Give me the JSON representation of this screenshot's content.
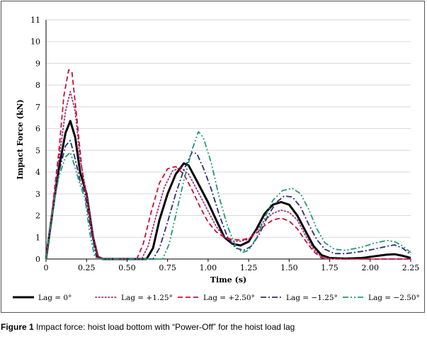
{
  "chart_data": {
    "type": "line",
    "xlabel": "Time (s)",
    "ylabel": "Impact Force (kN)",
    "xlim": [
      0,
      2.25
    ],
    "ylim": [
      0,
      11
    ],
    "xticks": [
      "0",
      "0.25",
      "0.50",
      "0.75",
      "1.00",
      "1.25",
      "1.50",
      "1.75",
      "2.00",
      "2.25"
    ],
    "yticks": [
      "0",
      "1",
      "2",
      "3",
      "4",
      "5",
      "6",
      "7",
      "8",
      "9",
      "10",
      "11"
    ],
    "grid": true,
    "legend_position": "bottom",
    "series": [
      {
        "name": "Lag = 0°",
        "color": "#000000",
        "dash": "solid",
        "points": [
          [
            0,
            0
          ],
          [
            0.04,
            2.2
          ],
          [
            0.08,
            4.2
          ],
          [
            0.12,
            5.8
          ],
          [
            0.15,
            6.35
          ],
          [
            0.18,
            5.6
          ],
          [
            0.21,
            4.0
          ],
          [
            0.25,
            3.0
          ],
          [
            0.29,
            1.0
          ],
          [
            0.32,
            0.1
          ],
          [
            0.35,
            0
          ],
          [
            0.62,
            0
          ],
          [
            0.66,
            0.5
          ],
          [
            0.7,
            1.8
          ],
          [
            0.75,
            3.0
          ],
          [
            0.8,
            3.9
          ],
          [
            0.85,
            4.4
          ],
          [
            0.88,
            4.3
          ],
          [
            0.93,
            3.6
          ],
          [
            1.0,
            2.6
          ],
          [
            1.05,
            1.8
          ],
          [
            1.1,
            1.0
          ],
          [
            1.15,
            0.7
          ],
          [
            1.2,
            0.62
          ],
          [
            1.25,
            0.8
          ],
          [
            1.3,
            1.4
          ],
          [
            1.35,
            2.1
          ],
          [
            1.4,
            2.5
          ],
          [
            1.45,
            2.62
          ],
          [
            1.5,
            2.5
          ],
          [
            1.55,
            2.0
          ],
          [
            1.6,
            1.3
          ],
          [
            1.65,
            0.6
          ],
          [
            1.7,
            0.18
          ],
          [
            1.75,
            0.05
          ],
          [
            1.85,
            0.02
          ],
          [
            1.95,
            0.05
          ],
          [
            2.02,
            0.12
          ],
          [
            2.1,
            0.2
          ],
          [
            2.15,
            0.22
          ],
          [
            2.2,
            0.15
          ],
          [
            2.25,
            0.05
          ]
        ]
      },
      {
        "name": "Lag = +1.25°",
        "color": "#a0307a",
        "dash": "dot",
        "points": [
          [
            0,
            0
          ],
          [
            0.04,
            2.3
          ],
          [
            0.08,
            4.6
          ],
          [
            0.12,
            6.8
          ],
          [
            0.15,
            7.7
          ],
          [
            0.18,
            6.8
          ],
          [
            0.21,
            4.6
          ],
          [
            0.25,
            3.0
          ],
          [
            0.29,
            1.0
          ],
          [
            0.32,
            0.1
          ],
          [
            0.35,
            0
          ],
          [
            0.59,
            0
          ],
          [
            0.63,
            0.6
          ],
          [
            0.68,
            2.0
          ],
          [
            0.73,
            3.3
          ],
          [
            0.78,
            4.05
          ],
          [
            0.83,
            4.2
          ],
          [
            0.88,
            3.9
          ],
          [
            0.93,
            3.2
          ],
          [
            1.0,
            2.2
          ],
          [
            1.05,
            1.5
          ],
          [
            1.1,
            1.0
          ],
          [
            1.15,
            0.82
          ],
          [
            1.2,
            0.82
          ],
          [
            1.25,
            0.9
          ],
          [
            1.3,
            1.3
          ],
          [
            1.35,
            1.8
          ],
          [
            1.4,
            2.1
          ],
          [
            1.45,
            2.25
          ],
          [
            1.5,
            2.15
          ],
          [
            1.55,
            1.8
          ],
          [
            1.6,
            1.1
          ],
          [
            1.65,
            0.45
          ],
          [
            1.7,
            0.1
          ],
          [
            1.75,
            0.02
          ],
          [
            1.9,
            0
          ],
          [
            2.0,
            0
          ],
          [
            2.1,
            0
          ],
          [
            2.25,
            0
          ]
        ]
      },
      {
        "name": "Lag = +2.50°",
        "color": "#c8102e",
        "dash": "dash",
        "points": [
          [
            0,
            0
          ],
          [
            0.04,
            2.4
          ],
          [
            0.08,
            5.0
          ],
          [
            0.11,
            7.5
          ],
          [
            0.14,
            8.7
          ],
          [
            0.16,
            8.6
          ],
          [
            0.19,
            6.5
          ],
          [
            0.22,
            4.2
          ],
          [
            0.25,
            2.8
          ],
          [
            0.29,
            1.0
          ],
          [
            0.32,
            0.1
          ],
          [
            0.35,
            0
          ],
          [
            0.56,
            0
          ],
          [
            0.6,
            0.7
          ],
          [
            0.65,
            2.2
          ],
          [
            0.7,
            3.5
          ],
          [
            0.75,
            4.15
          ],
          [
            0.8,
            4.25
          ],
          [
            0.85,
            3.9
          ],
          [
            0.9,
            3.2
          ],
          [
            0.95,
            2.4
          ],
          [
            1.0,
            1.7
          ],
          [
            1.05,
            1.25
          ],
          [
            1.1,
            1.0
          ],
          [
            1.15,
            0.9
          ],
          [
            1.2,
            0.88
          ],
          [
            1.25,
            0.95
          ],
          [
            1.3,
            1.2
          ],
          [
            1.35,
            1.55
          ],
          [
            1.4,
            1.8
          ],
          [
            1.45,
            1.88
          ],
          [
            1.5,
            1.75
          ],
          [
            1.55,
            1.4
          ],
          [
            1.6,
            0.85
          ],
          [
            1.65,
            0.35
          ],
          [
            1.7,
            0.05
          ],
          [
            1.8,
            0
          ],
          [
            2.0,
            0
          ],
          [
            2.1,
            0
          ],
          [
            2.25,
            0
          ]
        ]
      },
      {
        "name": "Lag = −1.25°",
        "color": "#2b2a7a",
        "dash": "dashdot",
        "points": [
          [
            0,
            0
          ],
          [
            0.04,
            2.2
          ],
          [
            0.08,
            4.0
          ],
          [
            0.12,
            5.2
          ],
          [
            0.15,
            5.45
          ],
          [
            0.18,
            4.6
          ],
          [
            0.21,
            3.6
          ],
          [
            0.24,
            3.0
          ],
          [
            0.28,
            1.2
          ],
          [
            0.31,
            0.1
          ],
          [
            0.34,
            0
          ],
          [
            0.66,
            0
          ],
          [
            0.7,
            0.5
          ],
          [
            0.75,
            1.7
          ],
          [
            0.8,
            3.0
          ],
          [
            0.85,
            4.1
          ],
          [
            0.9,
            4.9
          ],
          [
            0.93,
            4.85
          ],
          [
            0.97,
            4.2
          ],
          [
            1.02,
            3.2
          ],
          [
            1.07,
            2.0
          ],
          [
            1.12,
            1.0
          ],
          [
            1.17,
            0.5
          ],
          [
            1.22,
            0.4
          ],
          [
            1.27,
            0.6
          ],
          [
            1.32,
            1.2
          ],
          [
            1.37,
            2.0
          ],
          [
            1.42,
            2.6
          ],
          [
            1.47,
            2.9
          ],
          [
            1.52,
            2.85
          ],
          [
            1.57,
            2.4
          ],
          [
            1.62,
            1.6
          ],
          [
            1.67,
            0.9
          ],
          [
            1.72,
            0.45
          ],
          [
            1.78,
            0.25
          ],
          [
            1.85,
            0.25
          ],
          [
            1.95,
            0.35
          ],
          [
            2.02,
            0.45
          ],
          [
            2.1,
            0.58
          ],
          [
            2.15,
            0.65
          ],
          [
            2.2,
            0.5
          ],
          [
            2.25,
            0.2
          ]
        ]
      },
      {
        "name": "Lag = −2.50°",
        "color": "#1e9a74",
        "dash": "dashdotdot",
        "points": [
          [
            0,
            0
          ],
          [
            0.04,
            2.2
          ],
          [
            0.08,
            3.8
          ],
          [
            0.12,
            4.7
          ],
          [
            0.15,
            4.9
          ],
          [
            0.18,
            4.2
          ],
          [
            0.21,
            3.4
          ],
          [
            0.24,
            2.8
          ],
          [
            0.27,
            1.2
          ],
          [
            0.3,
            0.1
          ],
          [
            0.33,
            0
          ],
          [
            0.72,
            0
          ],
          [
            0.76,
            0.7
          ],
          [
            0.8,
            2.0
          ],
          [
            0.85,
            3.6
          ],
          [
            0.9,
            5.0
          ],
          [
            0.94,
            5.85
          ],
          [
            0.97,
            5.6
          ],
          [
            1.02,
            4.4
          ],
          [
            1.07,
            2.8
          ],
          [
            1.12,
            1.5
          ],
          [
            1.17,
            0.6
          ],
          [
            1.21,
            0.3
          ],
          [
            1.25,
            0.4
          ],
          [
            1.3,
            1.0
          ],
          [
            1.35,
            1.9
          ],
          [
            1.4,
            2.7
          ],
          [
            1.46,
            3.15
          ],
          [
            1.52,
            3.25
          ],
          [
            1.57,
            3.0
          ],
          [
            1.62,
            2.3
          ],
          [
            1.67,
            1.4
          ],
          [
            1.72,
            0.75
          ],
          [
            1.78,
            0.45
          ],
          [
            1.85,
            0.4
          ],
          [
            1.95,
            0.55
          ],
          [
            2.02,
            0.72
          ],
          [
            2.1,
            0.85
          ],
          [
            2.15,
            0.8
          ],
          [
            2.2,
            0.6
          ],
          [
            2.25,
            0.3
          ]
        ]
      }
    ]
  },
  "caption": {
    "label": "Figure 1",
    "text": " Impact force: hoist load bottom with “Power-Off” for the hoist load lag"
  }
}
